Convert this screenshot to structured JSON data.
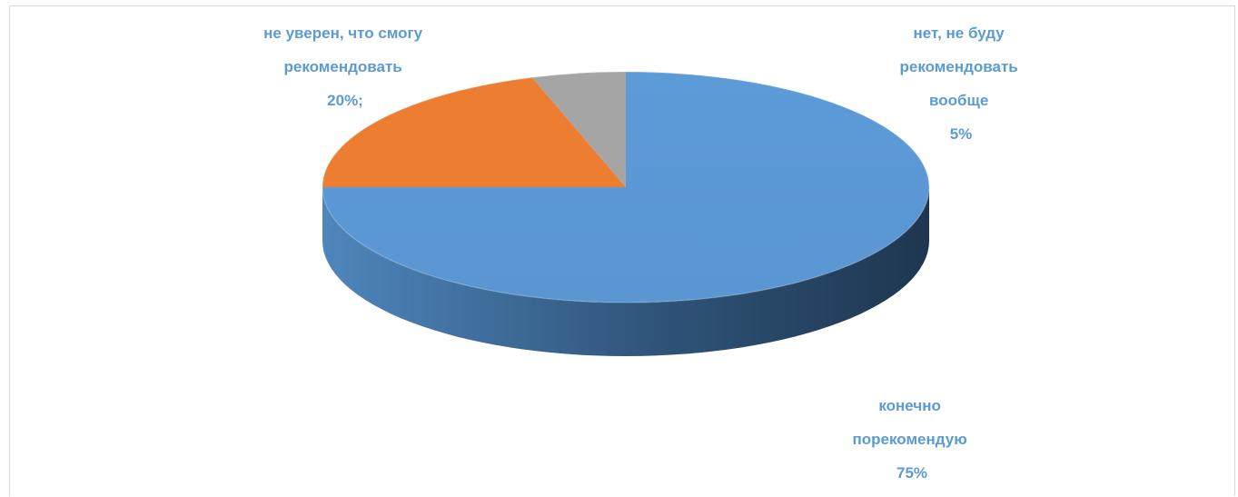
{
  "chart_data": {
    "type": "pie",
    "style": "3d",
    "slices": [
      {
        "label_lines": [
          "конечно",
          "порекомендую",
          "75%"
        ],
        "value": 75,
        "color": "#5b9bd5",
        "side_color": "#2e4a6e"
      },
      {
        "label_lines": [
          "не уверен, что смогу",
          "рекомендовать",
          "20%;"
        ],
        "value": 20,
        "color": "#ed7d31",
        "side_color": "#9c4e1c"
      },
      {
        "label_lines": [
          "нет, не буду",
          "рекомендовать",
          "вообще",
          "5%"
        ],
        "value": 5,
        "color": "#a5a5a5",
        "side_color": "#6e6e6e"
      }
    ],
    "label_color": "#5b9bd5"
  }
}
